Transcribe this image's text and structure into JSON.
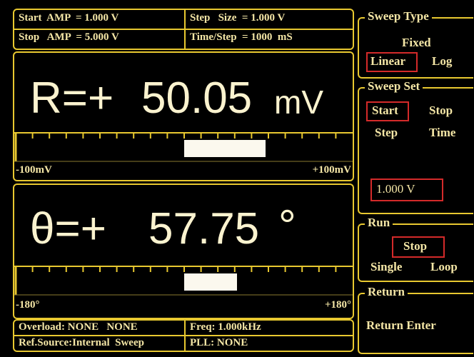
{
  "status": {
    "start_amp": "Start  AMP  = 1.000 V",
    "step_size": "Step   Size  = 1.000 V",
    "stop_amp": "Stop   AMP  = 5.000 V",
    "time_step": "Time/Step  = 1000  mS"
  },
  "r_readout": {
    "prefix": "R=+",
    "value": "50.05",
    "unit": "mV",
    "scale_min": "-100mV",
    "scale_max": "+100mV"
  },
  "theta_readout": {
    "prefix": "θ=+",
    "value": "57.75",
    "unit": "°",
    "scale_min": "-180°",
    "scale_max": "+180°"
  },
  "footer": {
    "overload": "Overload: NONE   NONE",
    "freq": "Freq: 1.000kHz",
    "ref_source": "Ref.Source:Internal  Sweep",
    "pll": "PLL: NONE"
  },
  "menu": {
    "sweep_type": {
      "title": "Sweep Type",
      "fixed": "Fixed",
      "linear": "Linear",
      "log": "Log"
    },
    "sweep_set": {
      "title": "Sweep Set",
      "start": "Start",
      "stop": "Stop",
      "step": "Step",
      "time": "Time",
      "entry": "1.000 V"
    },
    "run": {
      "title": "Run",
      "stop": "Stop",
      "single": "Single",
      "loop": "Loop"
    },
    "return": {
      "title": "Return",
      "label": "Return Enter"
    }
  }
}
